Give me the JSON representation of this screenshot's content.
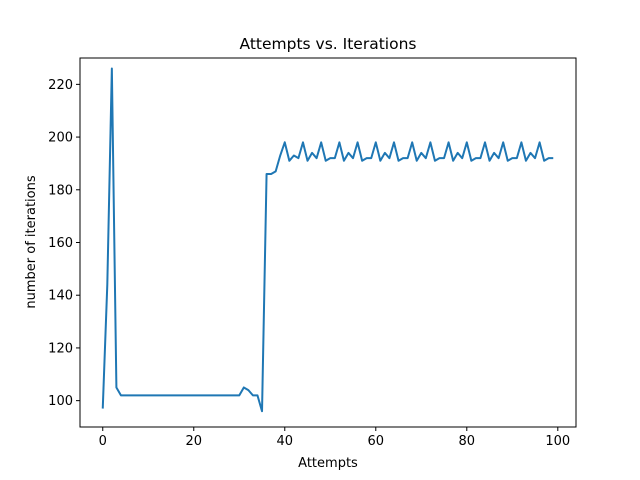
{
  "chart_data": {
    "type": "line",
    "title": "Attempts vs. Iterations",
    "xlabel": "Attempts",
    "ylabel": "number of iterations",
    "xlim": [
      -5,
      104
    ],
    "ylim": [
      90,
      230
    ],
    "xticks": [
      0,
      20,
      40,
      60,
      80,
      100
    ],
    "yticks": [
      100,
      120,
      140,
      160,
      180,
      200,
      220
    ],
    "grid": false,
    "color": "#1f77b4",
    "series": [
      {
        "x": [
          0,
          1,
          2,
          3,
          4,
          5,
          6,
          7,
          8,
          9,
          10,
          11,
          12,
          13,
          14,
          15,
          16,
          17,
          18,
          19,
          20,
          21,
          22,
          23,
          24,
          25,
          26,
          27,
          28,
          29,
          30,
          31,
          32,
          33,
          34,
          35,
          36,
          37,
          38,
          39,
          40,
          41,
          42,
          43,
          44,
          45,
          46,
          47,
          48,
          49,
          50,
          51,
          52,
          53,
          54,
          55,
          56,
          57,
          58,
          59,
          60,
          61,
          62,
          63,
          64,
          65,
          66,
          67,
          68,
          69,
          70,
          71,
          72,
          73,
          74,
          75,
          76,
          77,
          78,
          79,
          80,
          81,
          82,
          83,
          84,
          85,
          86,
          87,
          88,
          89,
          90,
          91,
          92,
          93,
          94,
          95,
          96,
          97,
          98,
          99
        ],
        "values": [
          97,
          144,
          226,
          105,
          102,
          102,
          102,
          102,
          102,
          102,
          102,
          102,
          102,
          102,
          102,
          102,
          102,
          102,
          102,
          102,
          102,
          102,
          102,
          102,
          102,
          102,
          102,
          102,
          102,
          102,
          102,
          105,
          104,
          102,
          102,
          96,
          186,
          186,
          187,
          193,
          198,
          191,
          193,
          192,
          198,
          191,
          194,
          192,
          198,
          191,
          192,
          192,
          198,
          191,
          194,
          192,
          198,
          191,
          192,
          192,
          198,
          191,
          194,
          192,
          198,
          191,
          192,
          192,
          198,
          191,
          194,
          192,
          198,
          191,
          192,
          192,
          198,
          191,
          194,
          192,
          198,
          191,
          192,
          192,
          198,
          191,
          194,
          192,
          198,
          191,
          192,
          192,
          198,
          191,
          194,
          192,
          198,
          191,
          192,
          192
        ]
      }
    ]
  }
}
